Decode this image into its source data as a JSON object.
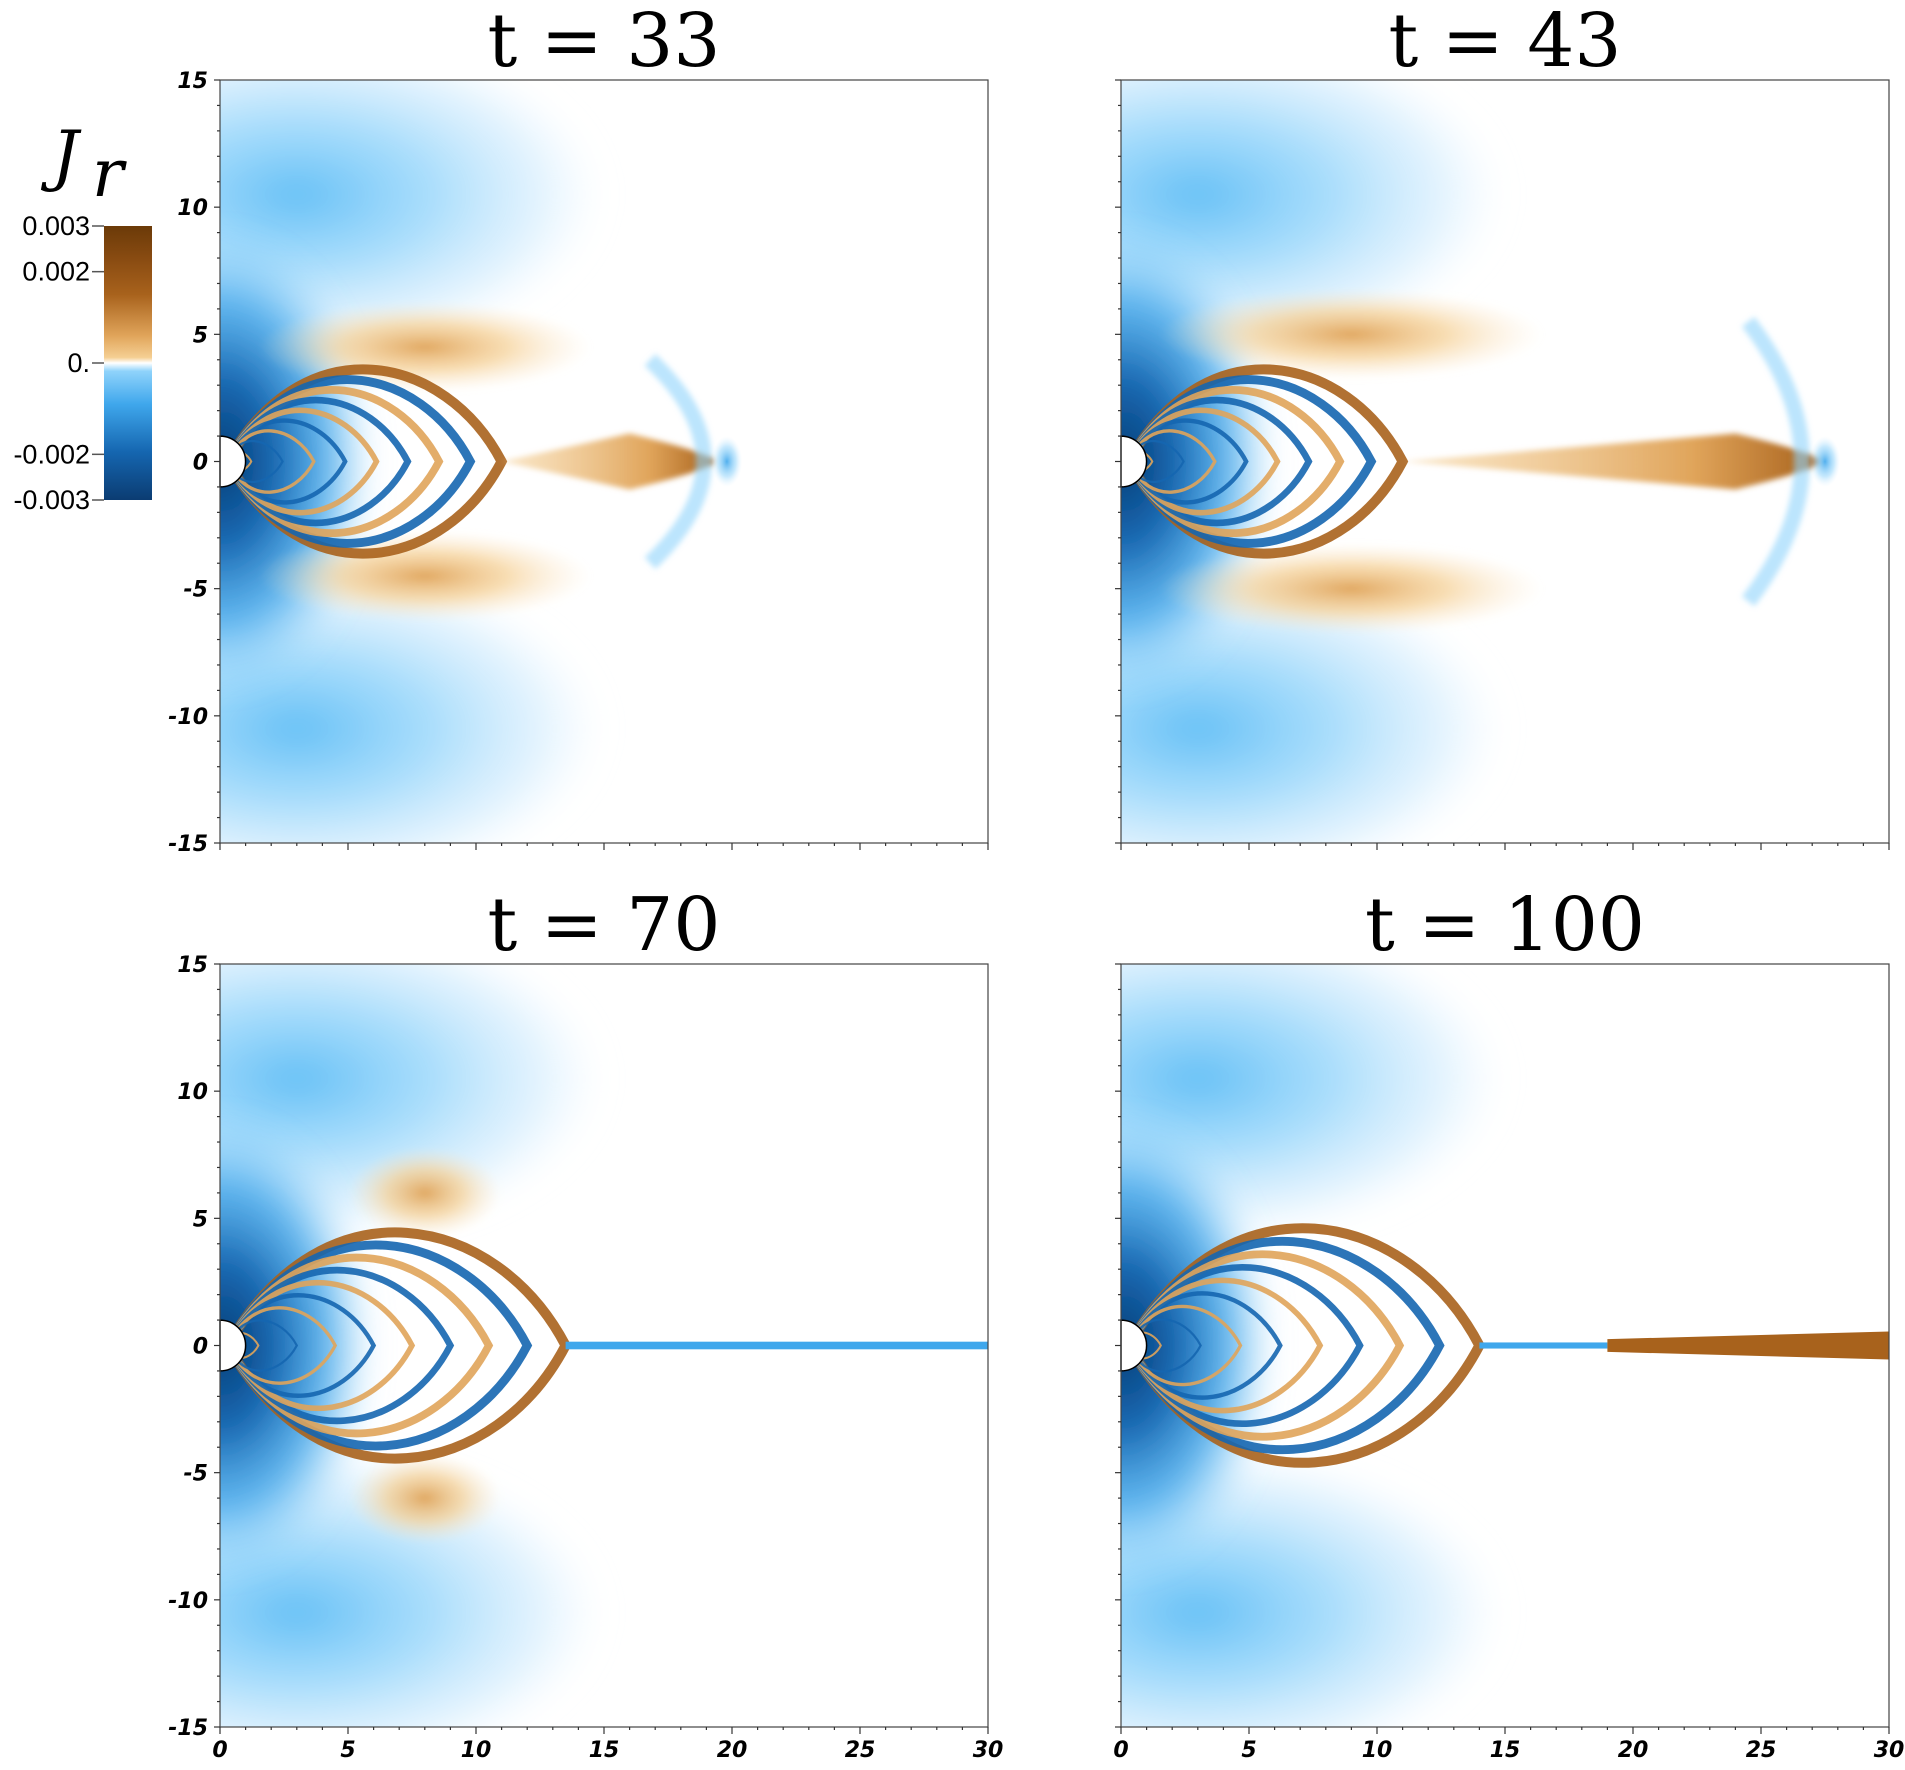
{
  "colorbar": {
    "title": "J",
    "title_sub": "r",
    "ticks": [
      {
        "value": 0.003,
        "label": "0.003"
      },
      {
        "value": 0.002,
        "label": "0.002"
      },
      {
        "value": 0,
        "label": "0."
      },
      {
        "value": -0.002,
        "label": "-0.002"
      },
      {
        "value": -0.003,
        "label": "-0.003"
      }
    ],
    "colors": {
      "max": "#6b3a08",
      "pos_high": "#a8621c",
      "pos_mid": "#e0a45a",
      "pos_low": "#f5cf93",
      "zero": "#ffffff",
      "neg_low": "#8fd3fb",
      "neg_mid": "#3fa7ec",
      "neg_high": "#1566b0",
      "min": "#0b3c72"
    }
  },
  "chart_data": [
    {
      "type": "heatmap",
      "title": "t = 33",
      "t": 33,
      "xlim": [
        0,
        30
      ],
      "ylim": [
        -15,
        15
      ],
      "xticks": [
        "0",
        "5",
        "10",
        "15",
        "20",
        "25",
        "30"
      ],
      "yticks": [
        "15",
        "10",
        "5",
        "0",
        "-5",
        "-10",
        "-15"
      ],
      "show_x_labels": false,
      "show_y_labels": true,
      "loop_tip": 11,
      "outer_lobe": {
        "x": 8,
        "y": 4.5,
        "extent": 6.5
      },
      "current_sheet_end": 19,
      "front_position": 19.8,
      "front_extent": 4.0,
      "equatorial_current_sign": "positive"
    },
    {
      "type": "heatmap",
      "title": "t = 43",
      "t": 43,
      "xlim": [
        0,
        30
      ],
      "ylim": [
        -15,
        15
      ],
      "xticks": [
        "0",
        "5",
        "10",
        "15",
        "20",
        "25",
        "30"
      ],
      "yticks": [
        "15",
        "10",
        "5",
        "0",
        "-5",
        "-10",
        "-15"
      ],
      "show_x_labels": false,
      "show_y_labels": false,
      "loop_tip": 11,
      "outer_lobe": {
        "x": 9,
        "y": 5,
        "extent": 7.5
      },
      "current_sheet_end": 27,
      "front_position": 27.5,
      "front_extent": 5.5,
      "equatorial_current_sign": "positive"
    },
    {
      "type": "heatmap",
      "title": "t = 70",
      "t": 70,
      "xlim": [
        0,
        30
      ],
      "ylim": [
        -15,
        15
      ],
      "xticks": [
        "0",
        "5",
        "10",
        "15",
        "20",
        "25",
        "30"
      ],
      "yticks": [
        "15",
        "10",
        "5",
        "0",
        "-5",
        "-10",
        "-15"
      ],
      "show_x_labels": true,
      "show_y_labels": true,
      "loop_tip": 13.5,
      "outer_lobe": {
        "x": 8,
        "y": 6,
        "extent": 3
      },
      "current_sheet_end": 30,
      "front_position": null,
      "front_extent": 0,
      "equatorial_current_sign": "negative"
    },
    {
      "type": "heatmap",
      "title": "t = 100",
      "t": 100,
      "xlim": [
        0,
        30
      ],
      "ylim": [
        -15,
        15
      ],
      "xticks": [
        "0",
        "5",
        "10",
        "15",
        "20",
        "25",
        "30"
      ],
      "yticks": [
        "15",
        "10",
        "5",
        "0",
        "-5",
        "-10",
        "-15"
      ],
      "show_x_labels": true,
      "show_y_labels": false,
      "loop_tip": 14,
      "outer_lobe": null,
      "current_sheet_end": 30,
      "front_position": null,
      "front_extent": 0,
      "equatorial_current_sign": "negative_then_positive",
      "sign_change_at": 19
    }
  ]
}
